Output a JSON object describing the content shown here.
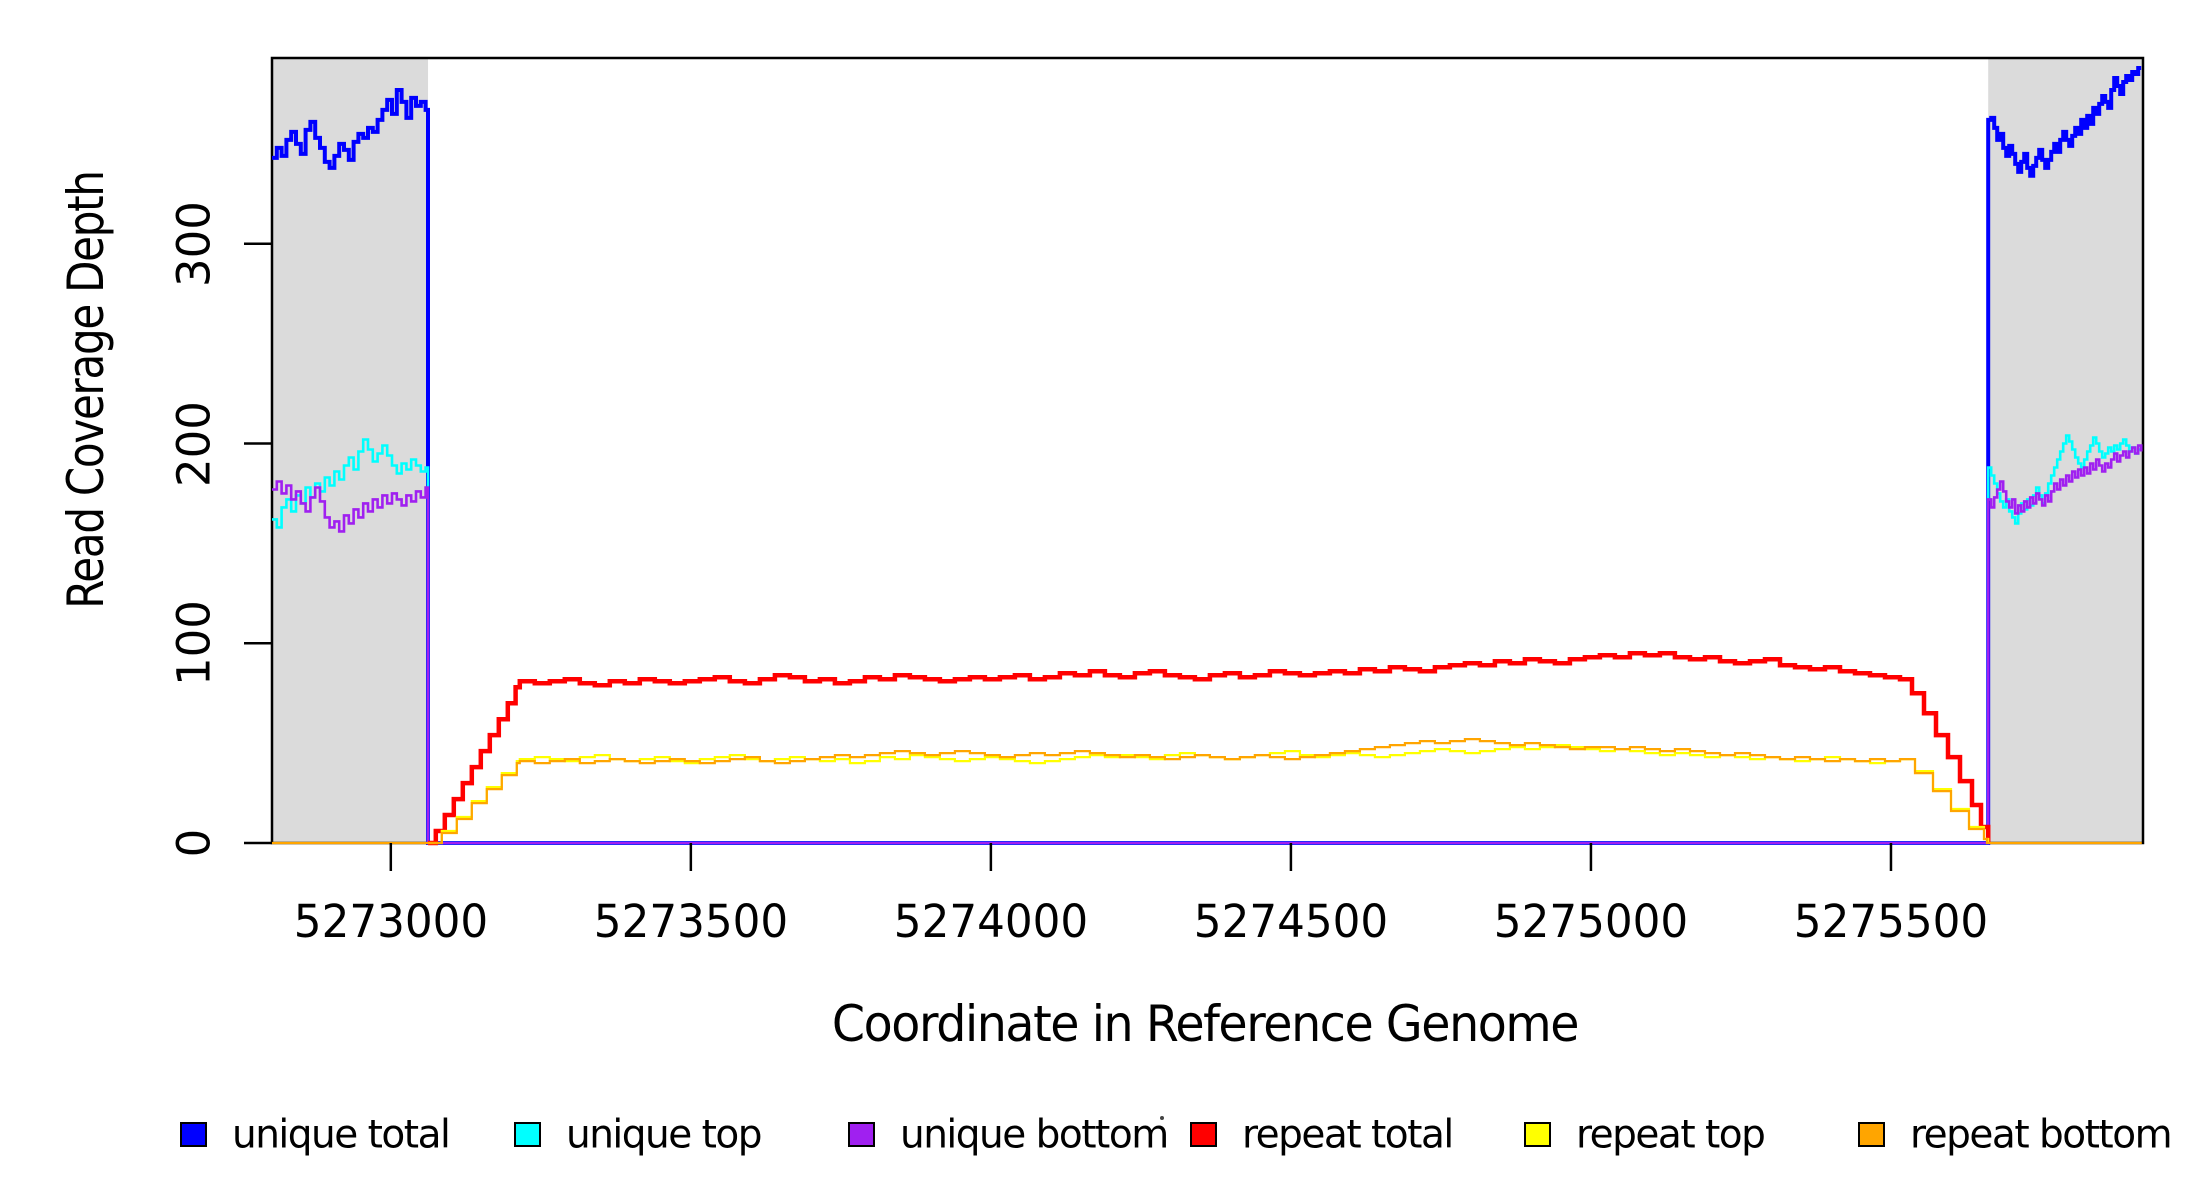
{
  "chart_data": {
    "type": "line",
    "title": "",
    "xlabel": "Coordinate in Reference Genome",
    "ylabel": "Read Coverage Depth",
    "xlim": [
      5272802,
      5275920
    ],
    "ylim": [
      0,
      393
    ],
    "x_ticks": [
      5273000,
      5273500,
      5274000,
      5274500,
      5275000,
      5275500
    ],
    "y_ticks": [
      0,
      100,
      200,
      300
    ],
    "grid": false,
    "legend_position": "bottom",
    "shade_color": "#DBDBDB",
    "frame_color": "#000000",
    "shaded_regions": [
      {
        "x0": 5272802,
        "x1": 5273062
      },
      {
        "x0": 5275662,
        "x1": 5275920
      }
    ],
    "series": [
      {
        "name": "unique total",
        "color": "#0000FF",
        "width": 4,
        "segments": [
          {
            "x0": 5272802,
            "dx": 8,
            "values": [
              343,
              348,
              344,
              352,
              356,
              350,
              345,
              357,
              361,
              353,
              348,
              341,
              338,
              344,
              350,
              347,
              342,
              351,
              355,
              353,
              358,
              356,
              362,
              367,
              372,
              365,
              377,
              371,
              363,
              373,
              369,
              371,
              367
            ]
          },
          {
            "points": [
              [
                5273062,
                0
              ]
            ]
          },
          {
            "x0": 5275662,
            "dx": 5,
            "values": [
              362,
              363,
              358,
              352,
              355,
              348,
              344,
              349,
              345,
              340,
              336,
              341,
              345,
              338,
              334,
              339,
              343,
              347,
              342,
              338,
              342,
              346,
              350,
              346,
              352,
              356,
              352,
              349,
              354,
              358,
              355,
              362,
              358,
              364,
              360,
              368,
              365,
              370,
              374,
              371,
              368,
              377,
              383,
              379,
              375,
              381,
              384,
              382,
              386,
              385,
              388,
              388
            ]
          }
        ]
      },
      {
        "name": "unique top",
        "color": "#00FFFF",
        "width": 2.6,
        "segments": [
          {
            "x0": 5272802,
            "dx": 8,
            "values": [
              162,
              158,
              168,
              172,
              166,
              174,
              170,
              178,
              173,
              180,
              176,
              183,
              179,
              186,
              182,
              189,
              193,
              187,
              196,
              202,
              197,
              191,
              195,
              199,
              194,
              189,
              185,
              190,
              187,
              192,
              189,
              186,
              188
            ]
          },
          {
            "points": [
              [
                5273062,
                0
              ]
            ]
          },
          {
            "x0": 5275662,
            "dx": 5,
            "values": [
              188,
              184,
              180,
              175,
              171,
              168,
              172,
              166,
              163,
              160,
              165,
              170,
              167,
              172,
              169,
              174,
              178,
              174,
              170,
              175,
              180,
              184,
              188,
              192,
              196,
              200,
              204,
              201,
              197,
              193,
              190,
              188,
              192,
              196,
              199,
              203,
              200,
              196,
              193,
              195,
              198,
              196,
              199,
              197,
              200,
              202,
              199,
              196,
              198,
              195,
              197,
              196
            ]
          }
        ]
      },
      {
        "name": "unique bottom",
        "color": "#A020F0",
        "width": 2.6,
        "segments": [
          {
            "x0": 5272802,
            "dx": 8,
            "values": [
              177,
              181,
              175,
              179,
              172,
              176,
              170,
              166,
              173,
              178,
              171,
              163,
              158,
              161,
              156,
              164,
              160,
              167,
              163,
              170,
              166,
              172,
              168,
              174,
              170,
              175,
              172,
              169,
              174,
              171,
              176,
              173,
              178
            ]
          },
          {
            "points": [
              [
                5273062,
                0
              ]
            ]
          },
          {
            "x0": 5275662,
            "dx": 5,
            "values": [
              172,
              168,
              173,
              177,
              181,
              176,
              171,
              168,
              172,
              165,
              169,
              166,
              171,
              168,
              173,
              170,
              175,
              172,
              169,
              174,
              171,
              176,
              180,
              177,
              182,
              179,
              184,
              181,
              186,
              183,
              187,
              184,
              188,
              185,
              190,
              187,
              192,
              189,
              186,
              190,
              188,
              192,
              195,
              191,
              194,
              196,
              193,
              196,
              198,
              195,
              199,
              196
            ]
          }
        ]
      },
      {
        "name": "repeat total",
        "color": "#FF0000",
        "width": 4.5,
        "segments": [
          {
            "points": [
              [
                5273062,
                0
              ],
              [
                5273075,
                6
              ],
              [
                5273090,
                14
              ],
              [
                5273105,
                22
              ],
              [
                5273120,
                30
              ],
              [
                5273135,
                38
              ],
              [
                5273150,
                46
              ],
              [
                5273165,
                54
              ],
              [
                5273180,
                62
              ],
              [
                5273195,
                70
              ],
              [
                5273208,
                78
              ]
            ]
          },
          {
            "x0": 5273215,
            "dx": 25,
            "values": [
              81,
              80,
              81,
              82,
              80,
              79,
              81,
              80,
              82,
              81,
              80,
              81,
              82,
              83,
              81,
              80,
              82,
              84,
              83,
              81,
              82,
              80,
              81,
              83,
              82,
              84,
              83,
              82,
              81,
              82,
              83,
              82,
              83,
              84,
              82,
              83,
              85,
              84,
              86,
              84,
              83,
              85,
              86,
              84,
              83,
              82,
              84,
              85,
              83,
              84,
              86,
              85,
              84,
              85,
              86,
              85,
              87,
              86,
              88,
              87,
              86,
              88,
              89,
              90,
              89,
              91,
              90,
              92,
              91,
              90,
              92,
              93,
              94,
              93,
              95,
              94,
              95,
              93,
              92,
              93,
              91,
              90,
              91,
              92,
              89,
              88,
              87,
              88,
              86,
              85,
              84,
              83,
              82
            ]
          },
          {
            "points": [
              [
                5275535,
                75
              ],
              [
                5275555,
                65
              ],
              [
                5275575,
                54
              ],
              [
                5275595,
                43
              ],
              [
                5275615,
                31
              ],
              [
                5275635,
                19
              ],
              [
                5275650,
                8
              ],
              [
                5275662,
                0
              ]
            ]
          }
        ]
      },
      {
        "name": "repeat top",
        "color": "#FFFF00",
        "width": 2.2,
        "segments": [
          {
            "points": [
              [
                5273062,
                0
              ],
              [
                5273085,
                6
              ],
              [
                5273110,
                13
              ],
              [
                5273135,
                21
              ],
              [
                5273160,
                28
              ],
              [
                5273185,
                35
              ],
              [
                5273210,
                41
              ]
            ]
          },
          {
            "x0": 5273215,
            "dx": 25,
            "values": [
              42,
              43,
              42,
              41,
              43,
              44,
              42,
              41,
              42,
              43,
              41,
              40,
              42,
              43,
              44,
              42,
              41,
              42,
              43,
              42,
              41,
              42,
              40,
              41,
              43,
              42,
              44,
              43,
              42,
              41,
              42,
              43,
              42,
              41,
              40,
              41,
              42,
              43,
              44,
              43,
              44,
              43,
              42,
              44,
              45,
              44,
              43,
              42,
              43,
              44,
              45,
              46,
              44,
              43,
              44,
              45,
              44,
              43,
              44,
              45,
              46,
              47,
              46,
              45,
              46,
              47,
              48,
              47,
              48,
              49,
              48,
              47,
              46,
              47,
              46,
              45,
              44,
              45,
              44,
              43,
              44,
              43,
              42,
              43,
              42,
              41,
              42,
              43,
              42,
              41,
              40,
              41,
              42
            ]
          },
          {
            "points": [
              [
                5275540,
                36
              ],
              [
                5275570,
                27
              ],
              [
                5275600,
                17
              ],
              [
                5275630,
                8
              ],
              [
                5275655,
                2
              ],
              [
                5275662,
                0
              ]
            ]
          }
        ]
      },
      {
        "name": "repeat bottom",
        "color": "#FFA500",
        "width": 2.2,
        "segments": [
          {
            "points": [
              [
                5272802,
                0
              ],
              [
                5273062,
                0
              ],
              [
                5273085,
                5
              ],
              [
                5273110,
                12
              ],
              [
                5273135,
                20
              ],
              [
                5273160,
                27
              ],
              [
                5273185,
                34
              ],
              [
                5273210,
                40
              ]
            ]
          },
          {
            "x0": 5273215,
            "dx": 25,
            "values": [
              41,
              40,
              41,
              42,
              40,
              41,
              42,
              41,
              40,
              41,
              42,
              41,
              40,
              41,
              42,
              43,
              41,
              40,
              41,
              42,
              43,
              44,
              43,
              44,
              45,
              46,
              45,
              44,
              45,
              46,
              45,
              44,
              43,
              44,
              45,
              44,
              45,
              46,
              45,
              44,
              43,
              44,
              43,
              42,
              43,
              44,
              43,
              42,
              43,
              44,
              43,
              42,
              43,
              44,
              45,
              46,
              47,
              48,
              49,
              50,
              51,
              50,
              51,
              52,
              51,
              50,
              49,
              50,
              49,
              48,
              47,
              48,
              48,
              47,
              48,
              47,
              46,
              47,
              46,
              45,
              44,
              45,
              44,
              43,
              42,
              43,
              42,
              41,
              42,
              41,
              42,
              41,
              42
            ]
          },
          {
            "points": [
              [
                5275540,
                35
              ],
              [
                5275570,
                26
              ],
              [
                5275600,
                16
              ],
              [
                5275630,
                7
              ],
              [
                5275655,
                2
              ],
              [
                5275660,
                0
              ],
              [
                5275662,
                0
              ],
              [
                5275918,
                0
              ]
            ]
          }
        ]
      }
    ]
  }
}
